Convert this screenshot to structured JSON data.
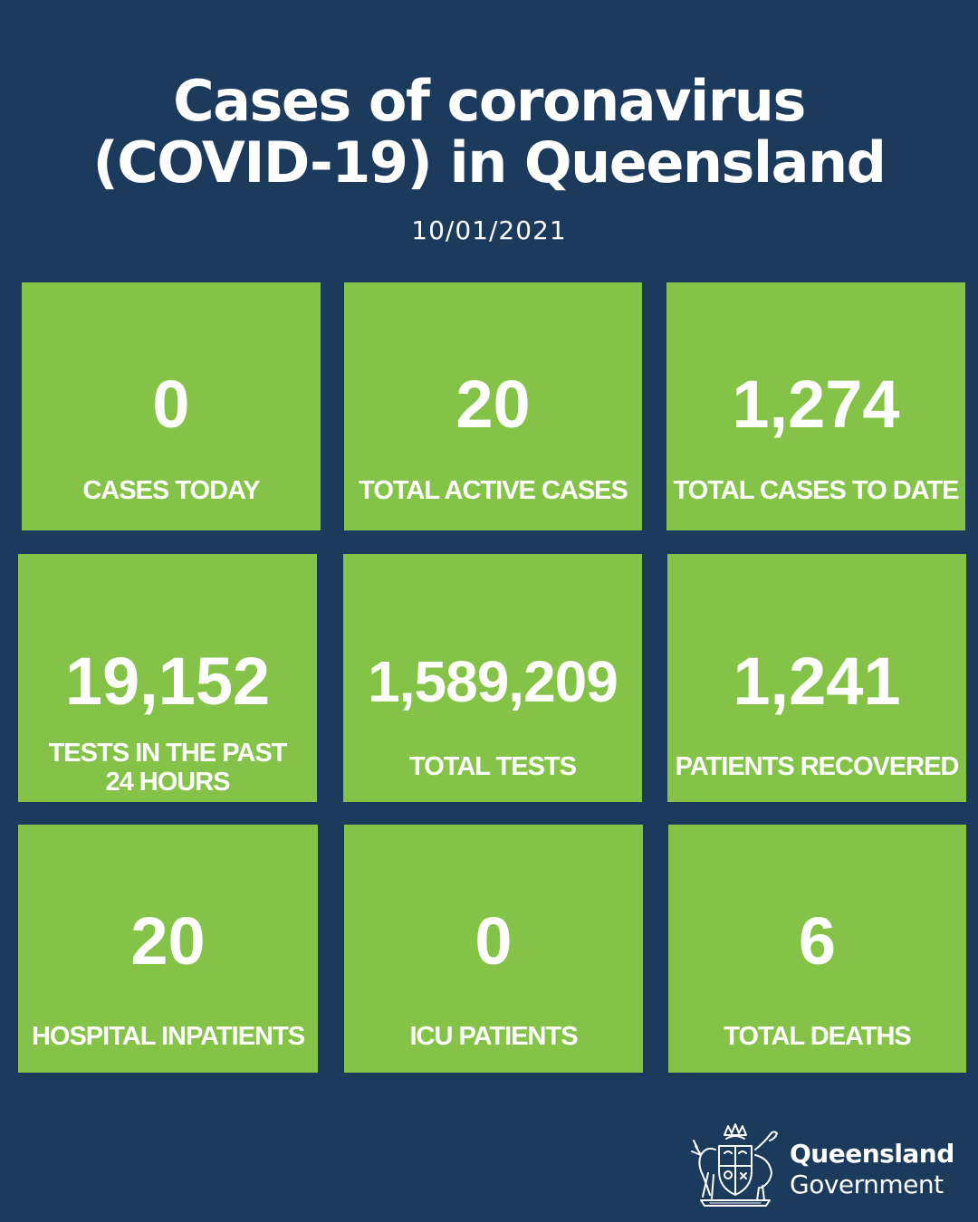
{
  "header": {
    "title_line1": "Cases of coronavirus",
    "title_line2": "(COVID-19) in Queensland",
    "date": "10/01/2021"
  },
  "colors": {
    "background": "#1b3a5c",
    "tile": "#84c348",
    "text": "#ffffff"
  },
  "stats": {
    "cases_today": {
      "value": "0",
      "label": "CASES TODAY"
    },
    "total_active_cases": {
      "value": "20",
      "label": "TOTAL ACTIVE CASES"
    },
    "total_cases_to_date": {
      "value": "1,274",
      "label": "TOTAL CASES TO DATE"
    },
    "tests_past_24h": {
      "value": "19,152",
      "label": "TESTS IN THE PAST\n24 HOURS"
    },
    "total_tests": {
      "value": "1,589,209",
      "label": "TOTAL TESTS"
    },
    "patients_recovered": {
      "value": "1,241",
      "label": "PATIENTS RECOVERED"
    },
    "hospital_inpatients": {
      "value": "20",
      "label": "HOSPITAL INPATIENTS"
    },
    "icu_patients": {
      "value": "0",
      "label": "ICU PATIENTS"
    },
    "total_deaths": {
      "value": "6",
      "label": "TOTAL DEATHS"
    }
  },
  "footer": {
    "logo_icon": "queensland-coat-of-arms-icon",
    "logo_line1": "Queensland",
    "logo_line2": "Government"
  }
}
